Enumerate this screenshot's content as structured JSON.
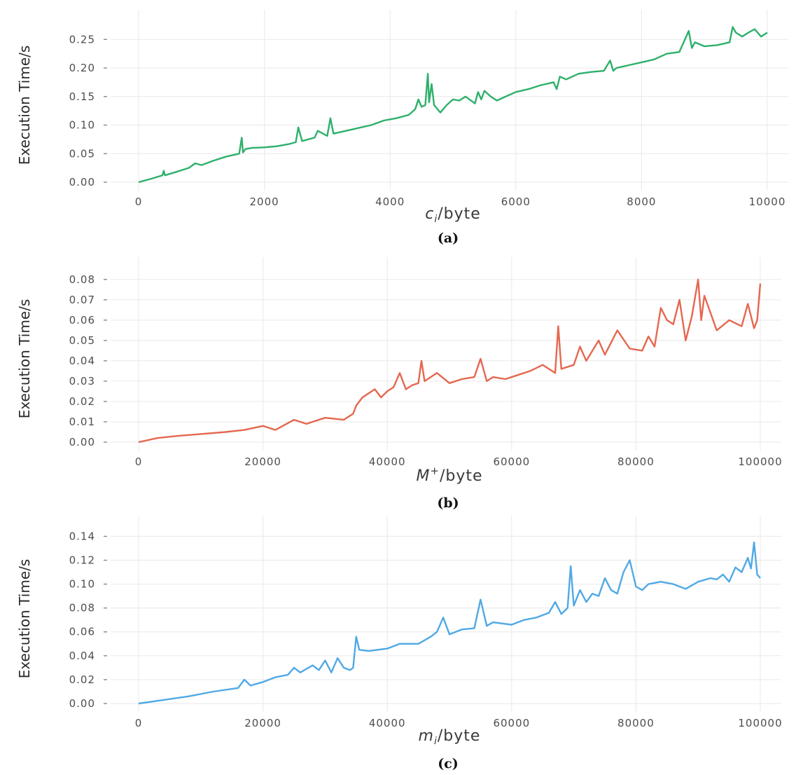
{
  "chart_data": [
    {
      "type": "line",
      "caption": "(a)",
      "xlabel": "c_i/byte",
      "ylabel": "Execution Time/s",
      "xlim": [
        0,
        10000
      ],
      "ylim": [
        0,
        0.27
      ],
      "xticks": [
        0,
        2000,
        4000,
        6000,
        8000,
        10000
      ],
      "yticks": [
        0.0,
        0.05,
        0.1,
        0.15,
        0.2,
        0.25
      ],
      "xtick_labels": [
        "0",
        "2000",
        "4000",
        "6000",
        "8000",
        "10000"
      ],
      "ytick_labels": [
        "0.00",
        "0.05",
        "0.10",
        "0.15",
        "0.20",
        "0.25"
      ],
      "color": "#2eb06b",
      "series": [
        {
          "x": [
            0,
            200,
            380,
            400,
            420,
            600,
            800,
            900,
            1000,
            1200,
            1400,
            1600,
            1640,
            1660,
            1700,
            1800,
            2000,
            2200,
            2400,
            2500,
            2540,
            2600,
            2800,
            2850,
            3000,
            3050,
            3100,
            3300,
            3500,
            3700,
            3900,
            4100,
            4300,
            4400,
            4450,
            4500,
            4560,
            4600,
            4620,
            4660,
            4700,
            4800,
            4900,
            5000,
            5100,
            5200,
            5350,
            5400,
            5450,
            5500,
            5600,
            5700,
            5800,
            6000,
            6200,
            6400,
            6600,
            6650,
            6700,
            6800,
            7000,
            7200,
            7400,
            7500,
            7550,
            7600,
            7800,
            8000,
            8200,
            8400,
            8600,
            8750,
            8800,
            8850,
            9000,
            9200,
            9400,
            9450,
            9500,
            9600,
            9700,
            9800,
            9900,
            10000
          ],
          "y": [
            0.0,
            0.006,
            0.012,
            0.02,
            0.012,
            0.018,
            0.025,
            0.033,
            0.03,
            0.038,
            0.045,
            0.05,
            0.078,
            0.052,
            0.058,
            0.06,
            0.061,
            0.063,
            0.067,
            0.07,
            0.096,
            0.072,
            0.078,
            0.09,
            0.081,
            0.112,
            0.085,
            0.09,
            0.095,
            0.1,
            0.108,
            0.112,
            0.118,
            0.128,
            0.145,
            0.132,
            0.135,
            0.19,
            0.14,
            0.172,
            0.135,
            0.122,
            0.135,
            0.145,
            0.143,
            0.15,
            0.138,
            0.158,
            0.145,
            0.16,
            0.15,
            0.143,
            0.148,
            0.158,
            0.163,
            0.17,
            0.175,
            0.163,
            0.185,
            0.18,
            0.19,
            0.193,
            0.195,
            0.213,
            0.195,
            0.2,
            0.205,
            0.21,
            0.215,
            0.225,
            0.228,
            0.265,
            0.235,
            0.245,
            0.238,
            0.24,
            0.245,
            0.272,
            0.262,
            0.255,
            0.262,
            0.268,
            0.255,
            0.262
          ]
        }
      ]
    },
    {
      "type": "line",
      "caption": "(b)",
      "xlabel": "M⁺/byte",
      "ylabel": "Execution Time/s",
      "xlim": [
        0,
        100000
      ],
      "ylim": [
        0,
        0.082
      ],
      "xticks": [
        0,
        20000,
        40000,
        60000,
        80000,
        100000
      ],
      "yticks": [
        0.0,
        0.01,
        0.02,
        0.03,
        0.04,
        0.05,
        0.06,
        0.07,
        0.08
      ],
      "xtick_labels": [
        "0",
        "20000",
        "40000",
        "60000",
        "80000",
        "100000"
      ],
      "ytick_labels": [
        "0.00",
        "0.01",
        "0.02",
        "0.03",
        "0.04",
        "0.05",
        "0.06",
        "0.07",
        "0.08"
      ],
      "color": "#e5674f",
      "series": [
        {
          "x": [
            0,
            3000,
            6000,
            10000,
            14000,
            17000,
            20000,
            22000,
            25000,
            27000,
            30000,
            33000,
            34500,
            35000,
            36000,
            37000,
            38000,
            39000,
            40000,
            41000,
            42000,
            43000,
            44000,
            45000,
            45500,
            46000,
            48000,
            50000,
            52000,
            54000,
            55000,
            56000,
            57000,
            59000,
            61000,
            63000,
            65000,
            67000,
            67500,
            68000,
            70000,
            71000,
            72000,
            74000,
            75000,
            76000,
            77000,
            79000,
            81000,
            82000,
            83000,
            84000,
            85000,
            86000,
            87000,
            88000,
            89000,
            90000,
            90500,
            91000,
            93000,
            95000,
            97000,
            98000,
            99000,
            99500,
            100000
          ],
          "y": [
            0.0,
            0.002,
            0.003,
            0.004,
            0.005,
            0.006,
            0.008,
            0.006,
            0.011,
            0.009,
            0.012,
            0.011,
            0.014,
            0.018,
            0.022,
            0.024,
            0.026,
            0.022,
            0.025,
            0.027,
            0.034,
            0.026,
            0.028,
            0.029,
            0.04,
            0.03,
            0.034,
            0.029,
            0.031,
            0.032,
            0.041,
            0.03,
            0.032,
            0.031,
            0.033,
            0.035,
            0.038,
            0.034,
            0.057,
            0.036,
            0.038,
            0.047,
            0.04,
            0.05,
            0.043,
            0.049,
            0.055,
            0.046,
            0.045,
            0.052,
            0.047,
            0.066,
            0.06,
            0.058,
            0.07,
            0.05,
            0.062,
            0.08,
            0.06,
            0.072,
            0.055,
            0.06,
            0.057,
            0.068,
            0.056,
            0.06,
            0.078
          ]
        }
      ]
    },
    {
      "type": "line",
      "caption": "(c)",
      "xlabel": "m_i/byte",
      "ylabel": "Execution Time/s",
      "xlim": [
        0,
        100000
      ],
      "ylim": [
        0,
        0.142
      ],
      "xticks": [
        0,
        20000,
        40000,
        60000,
        80000,
        100000
      ],
      "yticks": [
        0.0,
        0.02,
        0.04,
        0.06,
        0.08,
        0.1,
        0.12,
        0.14
      ],
      "xtick_labels": [
        "0",
        "20000",
        "40000",
        "60000",
        "80000",
        "100000"
      ],
      "ytick_labels": [
        "0.00",
        "0.02",
        "0.04",
        "0.06",
        "0.08",
        "0.10",
        "0.12",
        "0.14"
      ],
      "color": "#4fa9e5",
      "series": [
        {
          "x": [
            0,
            4000,
            8000,
            12000,
            16000,
            17000,
            18000,
            20000,
            22000,
            24000,
            25000,
            26000,
            28000,
            29000,
            30000,
            31000,
            32000,
            33000,
            34000,
            34500,
            35000,
            35500,
            37000,
            40000,
            42000,
            45000,
            47000,
            48000,
            49000,
            50000,
            52000,
            54000,
            55000,
            56000,
            57000,
            60000,
            62000,
            64000,
            66000,
            67000,
            68000,
            69000,
            69500,
            70000,
            71000,
            72000,
            73000,
            74000,
            75000,
            76000,
            77000,
            78000,
            79000,
            80000,
            81000,
            82000,
            84000,
            86000,
            88000,
            90000,
            92000,
            93000,
            94000,
            95000,
            96000,
            97000,
            98000,
            98500,
            99000,
            99500,
            100000
          ],
          "y": [
            0.0,
            0.003,
            0.006,
            0.01,
            0.013,
            0.02,
            0.015,
            0.018,
            0.022,
            0.024,
            0.03,
            0.026,
            0.032,
            0.028,
            0.036,
            0.026,
            0.038,
            0.03,
            0.028,
            0.03,
            0.056,
            0.045,
            0.044,
            0.046,
            0.05,
            0.05,
            0.056,
            0.06,
            0.072,
            0.058,
            0.062,
            0.063,
            0.087,
            0.065,
            0.068,
            0.066,
            0.07,
            0.072,
            0.076,
            0.085,
            0.075,
            0.08,
            0.115,
            0.082,
            0.095,
            0.085,
            0.092,
            0.09,
            0.105,
            0.095,
            0.092,
            0.11,
            0.12,
            0.098,
            0.095,
            0.1,
            0.102,
            0.1,
            0.096,
            0.102,
            0.105,
            0.104,
            0.108,
            0.102,
            0.114,
            0.11,
            0.122,
            0.113,
            0.135,
            0.108,
            0.105
          ]
        }
      ]
    }
  ]
}
